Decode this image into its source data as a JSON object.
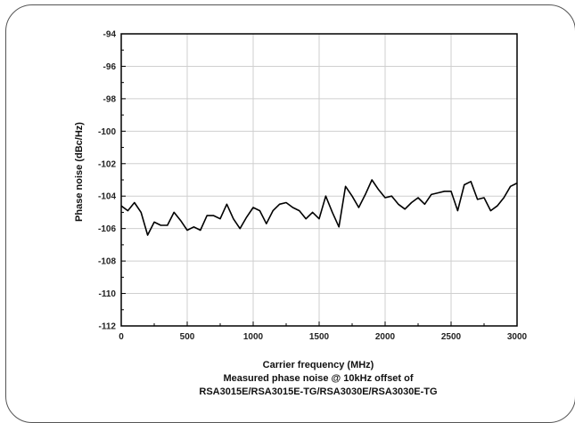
{
  "chart_data": {
    "type": "line",
    "xlabel": "Carrier frequency (MHz)",
    "ylabel": "Phase noise (dBc/Hz)",
    "caption_lines": [
      "Measured phase noise @ 10kHz offset of",
      "RSA3015E/RSA3015E-TG/RSA3030E/RSA3030E-TG"
    ],
    "xlim": [
      0,
      3000
    ],
    "ylim": [
      -112,
      -94
    ],
    "xticks": [
      0,
      500,
      1000,
      1500,
      2000,
      2500,
      3000
    ],
    "yticks": [
      -112,
      -110,
      -108,
      -106,
      -104,
      -102,
      -100,
      -98,
      -96,
      -94
    ],
    "grid": true,
    "line_color": "#000000",
    "series": [
      {
        "x": [
          0,
          50,
          100,
          150,
          200,
          250,
          300,
          350,
          400,
          450,
          500,
          550,
          600,
          650,
          700,
          750,
          800,
          850,
          900,
          950,
          1000,
          1050,
          1100,
          1150,
          1200,
          1250,
          1300,
          1350,
          1400,
          1450,
          1500,
          1550,
          1600,
          1650,
          1700,
          1750,
          1800,
          1850,
          1900,
          1950,
          2000,
          2050,
          2100,
          2150,
          2200,
          2250,
          2300,
          2350,
          2400,
          2450,
          2500,
          2550,
          2600,
          2650,
          2700,
          2750,
          2800,
          2850,
          2900,
          2950,
          3000
        ],
        "y": [
          -104.6,
          -104.9,
          -104.4,
          -105.0,
          -106.4,
          -105.6,
          -105.8,
          -105.8,
          -105.0,
          -105.5,
          -106.1,
          -105.9,
          -106.1,
          -105.2,
          -105.2,
          -105.4,
          -104.5,
          -105.4,
          -106.0,
          -105.3,
          -104.7,
          -104.9,
          -105.7,
          -104.9,
          -104.5,
          -104.4,
          -104.7,
          -104.9,
          -105.4,
          -105.0,
          -105.4,
          -104.0,
          -105.0,
          -105.9,
          -103.4,
          -104.0,
          -104.7,
          -103.9,
          -103.0,
          -103.6,
          -104.1,
          -104.0,
          -104.5,
          -104.8,
          -104.4,
          -104.1,
          -104.5,
          -103.9,
          -103.8,
          -103.7,
          -103.7,
          -104.9,
          -103.3,
          -103.1,
          -104.2,
          -104.1,
          -104.9,
          -104.6,
          -104.1,
          -103.4,
          -103.2
        ]
      }
    ]
  }
}
